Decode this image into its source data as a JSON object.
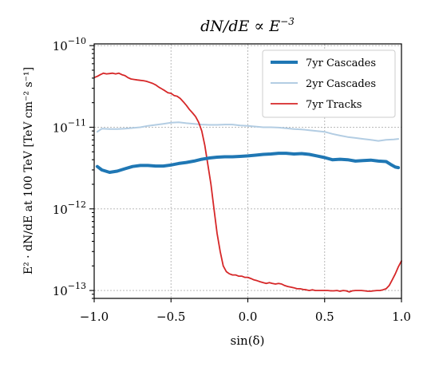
{
  "chart_data": {
    "type": "line",
    "title": "dN/dE ∝ E",
    "title_exponent": "−3",
    "xlabel": "sin(δ)",
    "ylabel": "E² · dN/dE at 100 TeV  [TeV cm⁻² s⁻¹]",
    "xlim": [
      -1.0,
      1.0
    ],
    "ylim": [
      8e-14,
      1.05e-10
    ],
    "yscale": "log",
    "grid": true,
    "legend_position": "top-right",
    "x_ticks": [
      {
        "value": -1.0,
        "label": "−1.0"
      },
      {
        "value": -0.5,
        "label": "−0.5"
      },
      {
        "value": 0.0,
        "label": "0.0"
      },
      {
        "value": 0.5,
        "label": "0.5"
      },
      {
        "value": 1.0,
        "label": "1.0"
      }
    ],
    "y_ticks": [
      {
        "value": 1e-10,
        "base": "10",
        "exp": "−10"
      },
      {
        "value": 1e-11,
        "base": "10",
        "exp": "−11"
      },
      {
        "value": 1e-12,
        "base": "10",
        "exp": "−12"
      },
      {
        "value": 1e-13,
        "base": "10",
        "exp": "−13"
      }
    ],
    "series": [
      {
        "name": "7yr Cascades",
        "color": "#1f77b4",
        "width": 4,
        "x": [
          -0.98,
          -0.95,
          -0.9,
          -0.85,
          -0.8,
          -0.75,
          -0.7,
          -0.65,
          -0.6,
          -0.55,
          -0.5,
          -0.45,
          -0.4,
          -0.35,
          -0.3,
          -0.25,
          -0.2,
          -0.15,
          -0.1,
          -0.05,
          0.0,
          0.05,
          0.1,
          0.15,
          0.2,
          0.25,
          0.3,
          0.35,
          0.4,
          0.45,
          0.5,
          0.55,
          0.6,
          0.65,
          0.7,
          0.75,
          0.8,
          0.85,
          0.9,
          0.93,
          0.96,
          0.98
        ],
        "y": [
          3.3e-12,
          3e-12,
          2.8e-12,
          2.9e-12,
          3.1e-12,
          3.3e-12,
          3.4e-12,
          3.4e-12,
          3.35e-12,
          3.35e-12,
          3.45e-12,
          3.6e-12,
          3.7e-12,
          3.85e-12,
          4.05e-12,
          4.2e-12,
          4.3e-12,
          4.35e-12,
          4.35e-12,
          4.4e-12,
          4.45e-12,
          4.55e-12,
          4.65e-12,
          4.7e-12,
          4.8e-12,
          4.8e-12,
          4.7e-12,
          4.75e-12,
          4.65e-12,
          4.45e-12,
          4.25e-12,
          4e-12,
          4.05e-12,
          4e-12,
          3.85e-12,
          3.9e-12,
          3.95e-12,
          3.85e-12,
          3.8e-12,
          3.5e-12,
          3.25e-12,
          3.2e-12
        ]
      },
      {
        "name": "2yr Cascades",
        "color": "#b3cde3",
        "width": 2,
        "x": [
          -0.98,
          -0.95,
          -0.9,
          -0.85,
          -0.8,
          -0.75,
          -0.7,
          -0.65,
          -0.6,
          -0.55,
          -0.5,
          -0.45,
          -0.4,
          -0.35,
          -0.3,
          -0.25,
          -0.2,
          -0.15,
          -0.1,
          -0.05,
          0.0,
          0.05,
          0.1,
          0.15,
          0.2,
          0.25,
          0.3,
          0.35,
          0.4,
          0.45,
          0.5,
          0.55,
          0.6,
          0.65,
          0.7,
          0.75,
          0.8,
          0.85,
          0.9,
          0.95,
          0.98
        ],
        "y": [
          8.8e-12,
          9.6e-12,
          9.5e-12,
          9.5e-12,
          9.6e-12,
          9.8e-12,
          1e-11,
          1.04e-11,
          1.07e-11,
          1.1e-11,
          1.14e-11,
          1.15e-11,
          1.12e-11,
          1.1e-11,
          1.08e-11,
          1.07e-11,
          1.07e-11,
          1.08e-11,
          1.08e-11,
          1.05e-11,
          1.04e-11,
          1.02e-11,
          1e-11,
          1e-11,
          9.9e-12,
          9.7e-12,
          9.5e-12,
          9.4e-12,
          9.2e-12,
          9e-12,
          8.8e-12,
          8.3e-12,
          7.9e-12,
          7.6e-12,
          7.4e-12,
          7.2e-12,
          7e-12,
          6.8e-12,
          7e-12,
          7.1e-12,
          7.2e-12
        ]
      },
      {
        "name": "7yr Tracks",
        "color": "#d62728",
        "width": 1.8,
        "x": [
          -0.995,
          -0.98,
          -0.96,
          -0.94,
          -0.92,
          -0.9,
          -0.88,
          -0.86,
          -0.84,
          -0.82,
          -0.8,
          -0.78,
          -0.76,
          -0.74,
          -0.72,
          -0.7,
          -0.68,
          -0.66,
          -0.64,
          -0.62,
          -0.6,
          -0.58,
          -0.56,
          -0.54,
          -0.52,
          -0.5,
          -0.48,
          -0.46,
          -0.44,
          -0.42,
          -0.4,
          -0.38,
          -0.36,
          -0.34,
          -0.32,
          -0.3,
          -0.28,
          -0.26,
          -0.24,
          -0.22,
          -0.2,
          -0.18,
          -0.16,
          -0.14,
          -0.12,
          -0.1,
          -0.08,
          -0.06,
          -0.04,
          -0.02,
          0.0,
          0.02,
          0.04,
          0.06,
          0.08,
          0.1,
          0.12,
          0.14,
          0.16,
          0.18,
          0.2,
          0.22,
          0.24,
          0.26,
          0.28,
          0.3,
          0.32,
          0.34,
          0.36,
          0.38,
          0.4,
          0.42,
          0.44,
          0.46,
          0.48,
          0.5,
          0.52,
          0.54,
          0.56,
          0.58,
          0.6,
          0.62,
          0.64,
          0.66,
          0.68,
          0.7,
          0.72,
          0.74,
          0.76,
          0.78,
          0.8,
          0.82,
          0.84,
          0.86,
          0.88,
          0.9,
          0.92,
          0.94,
          0.96,
          0.98,
          1.0
        ],
        "y": [
          4.1e-11,
          4.2e-11,
          4.4e-11,
          4.6e-11,
          4.5e-11,
          4.55e-11,
          4.6e-11,
          4.5e-11,
          4.6e-11,
          4.4e-11,
          4.3e-11,
          4.05e-11,
          3.9e-11,
          3.85e-11,
          3.8e-11,
          3.75e-11,
          3.72e-11,
          3.65e-11,
          3.55e-11,
          3.45e-11,
          3.3e-11,
          3.1e-11,
          2.95e-11,
          2.8e-11,
          2.65e-11,
          2.6e-11,
          2.45e-11,
          2.4e-11,
          2.25e-11,
          2.05e-11,
          1.85e-11,
          1.65e-11,
          1.5e-11,
          1.35e-11,
          1.15e-11,
          9e-12,
          6e-12,
          3.5e-12,
          2e-12,
          1e-12,
          5e-13,
          3e-13,
          2e-13,
          1.7e-13,
          1.6e-13,
          1.55e-13,
          1.55e-13,
          1.5e-13,
          1.5e-13,
          1.45e-13,
          1.45e-13,
          1.4e-13,
          1.35e-13,
          1.32e-13,
          1.28e-13,
          1.25e-13,
          1.22e-13,
          1.25e-13,
          1.22e-13,
          1.2e-13,
          1.22e-13,
          1.2e-13,
          1.15e-13,
          1.12e-13,
          1.1e-13,
          1.08e-13,
          1.05e-13,
          1.05e-13,
          1.03e-13,
          1.02e-13,
          1e-13,
          1.02e-13,
          1e-13,
          1e-13,
          1e-13,
          1e-13,
          1e-13,
          9.9e-14,
          9.9e-14,
          1e-13,
          9.8e-14,
          1e-13,
          9.9e-14,
          9.6e-14,
          9.9e-14,
          1e-13,
          1e-13,
          1e-13,
          9.9e-14,
          9.8e-14,
          9.8e-14,
          9.9e-14,
          1e-13,
          1e-13,
          1.02e-13,
          1.05e-13,
          1.15e-13,
          1.35e-13,
          1.6e-13,
          1.95e-13,
          2.3e-13
        ]
      }
    ]
  }
}
